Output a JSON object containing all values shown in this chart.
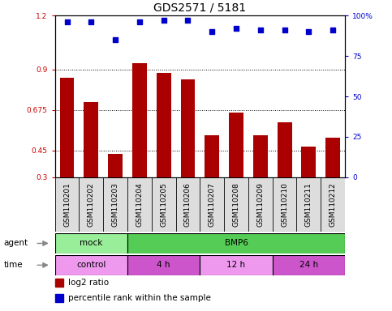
{
  "title": "GDS2571 / 5181",
  "samples": [
    "GSM110201",
    "GSM110202",
    "GSM110203",
    "GSM110204",
    "GSM110205",
    "GSM110206",
    "GSM110207",
    "GSM110208",
    "GSM110209",
    "GSM110210",
    "GSM110211",
    "GSM110212"
  ],
  "log2_ratio": [
    0.855,
    0.72,
    0.43,
    0.935,
    0.88,
    0.845,
    0.535,
    0.66,
    0.535,
    0.605,
    0.47,
    0.52
  ],
  "percentile": [
    96,
    96,
    85,
    96,
    97,
    97,
    90,
    92,
    91,
    91,
    90,
    91
  ],
  "ylim_left": [
    0.3,
    1.2
  ],
  "ylim_right": [
    0,
    100
  ],
  "yticks_left": [
    0.3,
    0.45,
    0.675,
    0.9,
    1.2
  ],
  "yticks_right": [
    0,
    25,
    50,
    75,
    100
  ],
  "bar_color": "#AA0000",
  "dot_color": "#0000CC",
  "agent_groups": [
    {
      "label": "mock",
      "start": 0,
      "end": 3,
      "color": "#99EE99"
    },
    {
      "label": "BMP6",
      "start": 3,
      "end": 12,
      "color": "#55CC55"
    }
  ],
  "time_groups": [
    {
      "label": "control",
      "start": 0,
      "end": 3,
      "color": "#EE99EE"
    },
    {
      "label": "4 h",
      "start": 3,
      "end": 6,
      "color": "#CC55CC"
    },
    {
      "label": "12 h",
      "start": 6,
      "end": 9,
      "color": "#EE99EE"
    },
    {
      "label": "24 h",
      "start": 9,
      "end": 12,
      "color": "#CC55CC"
    }
  ],
  "legend_items": [
    {
      "label": "log2 ratio",
      "color": "#AA0000"
    },
    {
      "label": "percentile rank within the sample",
      "color": "#0000CC"
    }
  ],
  "bg_color": "#FFFFFF",
  "title_fontsize": 10,
  "tick_fontsize": 6.5,
  "label_fontsize": 7.5,
  "row_label_fontsize": 7.5
}
